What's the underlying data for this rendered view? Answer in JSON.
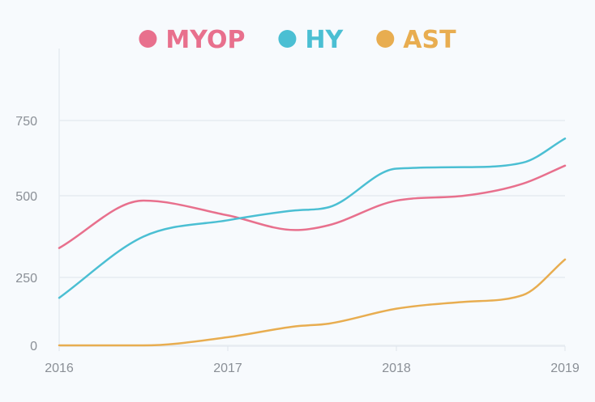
{
  "chart_data": {
    "type": "line",
    "title": "",
    "xlabel": "",
    "ylabel": "",
    "x": [
      2016,
      2016.5,
      2017,
      2017.4,
      2017.6,
      2018,
      2018.4,
      2018.75,
      2019
    ],
    "x_ticks": [
      "2016",
      "2017",
      "2018",
      "2019"
    ],
    "y_ticks": [
      "0",
      "250",
      "500",
      "750"
    ],
    "ylim": [
      0,
      1000
    ],
    "grid": true,
    "legend_position": "top",
    "smooth": true,
    "series": [
      {
        "name": "MYOP",
        "color": "#e8708d",
        "values": [
          340,
          485,
          440,
          395,
          410,
          485,
          500,
          540,
          600
        ]
      },
      {
        "name": "HY",
        "color": "#4bbfd3",
        "values": [
          175,
          375,
          425,
          455,
          465,
          590,
          595,
          610,
          690
        ]
      },
      {
        "name": "AST",
        "color": "#e8ad50",
        "values": [
          0,
          0,
          30,
          70,
          80,
          135,
          160,
          185,
          305
        ]
      }
    ]
  }
}
